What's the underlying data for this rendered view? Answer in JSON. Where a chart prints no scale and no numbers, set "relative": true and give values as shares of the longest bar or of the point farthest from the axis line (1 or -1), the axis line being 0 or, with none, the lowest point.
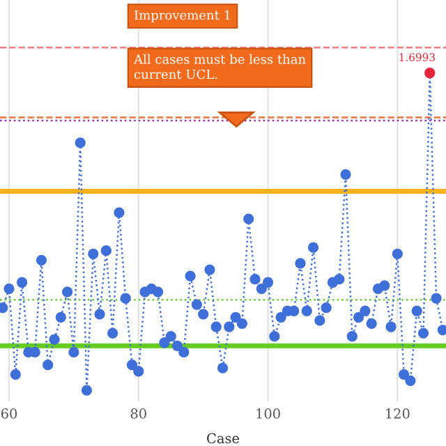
{
  "chart_data": {
    "type": "line",
    "relative": true,
    "xlabel": "Case",
    "x": [
      59,
      60,
      61,
      62,
      63,
      64,
      65,
      66,
      67,
      68,
      69,
      70,
      71,
      72,
      73,
      74,
      75,
      76,
      77,
      78,
      79,
      80,
      81,
      82,
      83,
      84,
      85,
      86,
      87,
      88,
      89,
      90,
      91,
      92,
      93,
      94,
      95,
      96,
      97,
      98,
      99,
      100,
      101,
      102,
      103,
      104,
      105,
      106,
      107,
      108,
      109,
      110,
      111,
      112,
      113,
      114,
      115,
      116,
      117,
      118,
      119,
      120,
      121,
      122,
      123,
      124,
      125,
      126,
      127
    ],
    "series": [
      {
        "color": "#3f6fd9",
        "values": [
          0.26,
          0.32,
          0.05,
          0.34,
          0.12,
          0.12,
          0.41,
          0.08,
          0.16,
          0.23,
          0.31,
          0.12,
          0.78,
          0.0,
          0.43,
          0.24,
          0.44,
          0.18,
          0.56,
          0.29,
          0.08,
          0.06,
          0.31,
          0.32,
          0.31,
          0.15,
          0.17,
          0.14,
          0.12,
          0.36,
          0.27,
          0.24,
          0.38,
          0.2,
          0.07,
          0.2,
          0.23,
          0.21,
          0.54,
          0.35,
          0.32,
          0.34,
          0.17,
          0.23,
          0.25,
          0.25,
          0.4,
          0.25,
          0.45,
          0.22,
          0.26,
          0.34,
          0.35,
          0.68,
          0.17,
          0.23,
          0.25,
          0.21,
          0.32,
          0.33,
          0.2,
          0.43,
          0.05,
          0.03,
          0.25,
          0.18,
          1.0,
          0.29,
          0.19
        ],
        "colors": [
          "#3f6fd9",
          "#3f6fd9",
          "#3f6fd9",
          "#3f6fd9",
          "#3f6fd9",
          "#3f6fd9",
          "#3f6fd9",
          "#3f6fd9",
          "#3f6fd9",
          "#3f6fd9",
          "#3f6fd9",
          "#3f6fd9",
          "#3f6fd9",
          "#3f6fd9",
          "#3f6fd9",
          "#3f6fd9",
          "#3f6fd9",
          "#3f6fd9",
          "#3f6fd9",
          "#3f6fd9",
          "#3f6fd9",
          "#3f6fd9",
          "#3f6fd9",
          "#3f6fd9",
          "#3f6fd9",
          "#3f6fd9",
          "#3f6fd9",
          "#3f6fd9",
          "#3f6fd9",
          "#3f6fd9",
          "#3f6fd9",
          "#3f6fd9",
          "#3f6fd9",
          "#3f6fd9",
          "#3f6fd9",
          "#3f6fd9",
          "#3f6fd9",
          "#3f6fd9",
          "#3f6fd9",
          "#3f6fd9",
          "#3f6fd9",
          "#3f6fd9",
          "#3f6fd9",
          "#3f6fd9",
          "#3f6fd9",
          "#3f6fd9",
          "#3f6fd9",
          "#3f6fd9",
          "#3f6fd9",
          "#3f6fd9",
          "#3f6fd9",
          "#3f6fd9",
          "#3f6fd9",
          "#3f6fd9",
          "#3f6fd9",
          "#3f6fd9",
          "#3f6fd9",
          "#3f6fd9",
          "#3f6fd9",
          "#3f6fd9",
          "#3f6fd9",
          "#3f6fd9",
          "#3f6fd9",
          "#3f6fd9",
          "#3f6fd9",
          "#3f6fd9",
          "#e8253a",
          "#3f6fd9",
          "#3f6fd9"
        ]
      }
    ],
    "xlim": [
      58.6,
      127.5
    ],
    "xticks": [
      60,
      80,
      100,
      120
    ],
    "ref_lines": [
      {
        "axis": "y",
        "value": 1.08,
        "color": "#f08080",
        "line_style": "dashed"
      },
      {
        "axis": "y",
        "value": 0.86,
        "color": "#e8743b",
        "line_style": "dashed"
      },
      {
        "axis": "y",
        "value": 0.85,
        "color": "#9b30b0",
        "line_style": "dotted"
      },
      {
        "axis": "y",
        "value": 0.627,
        "color": "#f5b21b",
        "line_style": "solid"
      },
      {
        "axis": "y",
        "value": 0.285,
        "color": "#66cc33",
        "line_style": "dotted"
      },
      {
        "axis": "y",
        "value": 0.14,
        "color": "#66cc22",
        "line_style": "solid"
      }
    ],
    "annotations": [
      "Improvement 1",
      "All cases must be less than current UCL.",
      {
        "text": "1.6993",
        "x": 125,
        "y": 1.0
      }
    ],
    "grid": "x",
    "legend": false,
    "marker": "circle",
    "line_style": "dotted"
  }
}
